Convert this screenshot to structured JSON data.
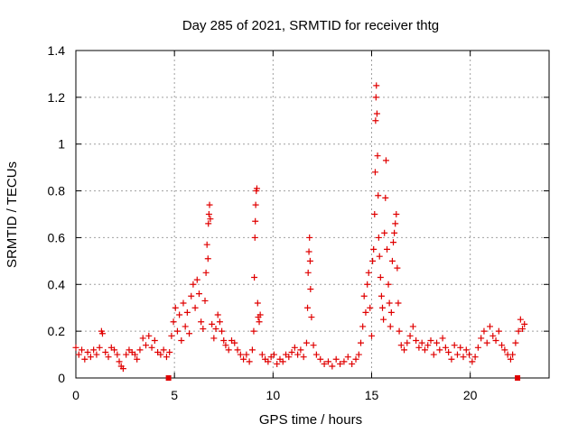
{
  "chart_data": {
    "type": "scatter",
    "title": "Day 285 of 2021, SRMTID for receiver thtg",
    "xlabel": "GPS time / hours",
    "ylabel": "SRMTID / TECUs",
    "xlim": [
      0,
      24
    ],
    "ylim": [
      0,
      1.4
    ],
    "grid": true,
    "marker": "+",
    "x_ticks": [
      {
        "value": 0,
        "label": "0"
      },
      {
        "value": 5,
        "label": "5"
      },
      {
        "value": 10,
        "label": "10"
      },
      {
        "value": 15,
        "label": "15"
      },
      {
        "value": 20,
        "label": "20"
      }
    ],
    "y_ticks": [
      {
        "value": 0,
        "label": "0"
      },
      {
        "value": 0.2,
        "label": "0.2"
      },
      {
        "value": 0.4,
        "label": "0.4"
      },
      {
        "value": 0.6,
        "label": "0.6"
      },
      {
        "value": 0.8,
        "label": "0.8"
      },
      {
        "value": 1.0,
        "label": "1"
      },
      {
        "value": 1.2,
        "label": "1.2"
      },
      {
        "value": 1.4,
        "label": "1.4"
      }
    ],
    "series": [
      {
        "name": "SRMTID",
        "color": "#e00000",
        "points": [
          [
            0.0,
            0.13
          ],
          [
            0.15,
            0.1
          ],
          [
            0.3,
            0.12
          ],
          [
            0.45,
            0.08
          ],
          [
            0.6,
            0.11
          ],
          [
            0.75,
            0.09
          ],
          [
            0.9,
            0.12
          ],
          [
            1.05,
            0.1
          ],
          [
            1.2,
            0.13
          ],
          [
            1.3,
            0.2
          ],
          [
            1.35,
            0.19
          ],
          [
            1.5,
            0.11
          ],
          [
            1.65,
            0.09
          ],
          [
            1.8,
            0.13
          ],
          [
            1.95,
            0.12
          ],
          [
            2.1,
            0.1
          ],
          [
            2.2,
            0.07
          ],
          [
            2.3,
            0.05
          ],
          [
            2.4,
            0.04
          ],
          [
            2.55,
            0.1
          ],
          [
            2.7,
            0.12
          ],
          [
            2.85,
            0.11
          ],
          [
            3.0,
            0.1
          ],
          [
            3.1,
            0.08
          ],
          [
            3.25,
            0.12
          ],
          [
            3.4,
            0.17
          ],
          [
            3.55,
            0.14
          ],
          [
            3.7,
            0.18
          ],
          [
            3.85,
            0.13
          ],
          [
            4.0,
            0.16
          ],
          [
            4.15,
            0.11
          ],
          [
            4.3,
            0.1
          ],
          [
            4.45,
            0.12
          ],
          [
            4.6,
            0.09
          ],
          [
            4.75,
            0.11
          ],
          [
            4.85,
            0.18
          ],
          [
            4.95,
            0.24
          ],
          [
            5.05,
            0.3
          ],
          [
            5.15,
            0.2
          ],
          [
            5.25,
            0.27
          ],
          [
            5.35,
            0.16
          ],
          [
            5.45,
            0.32
          ],
          [
            5.55,
            0.22
          ],
          [
            5.65,
            0.28
          ],
          [
            5.75,
            0.19
          ],
          [
            5.85,
            0.35
          ],
          [
            5.95,
            0.4
          ],
          [
            6.05,
            0.3
          ],
          [
            6.15,
            0.42
          ],
          [
            6.25,
            0.36
          ],
          [
            6.35,
            0.24
          ],
          [
            6.45,
            0.21
          ],
          [
            6.55,
            0.33
          ],
          [
            6.6,
            0.45
          ],
          [
            6.65,
            0.57
          ],
          [
            6.7,
            0.51
          ],
          [
            6.72,
            0.66
          ],
          [
            6.75,
            0.7
          ],
          [
            6.78,
            0.74
          ],
          [
            6.82,
            0.68
          ],
          [
            6.9,
            0.23
          ],
          [
            7.0,
            0.17
          ],
          [
            7.1,
            0.21
          ],
          [
            7.2,
            0.27
          ],
          [
            7.3,
            0.24
          ],
          [
            7.4,
            0.2
          ],
          [
            7.5,
            0.16
          ],
          [
            7.6,
            0.14
          ],
          [
            7.75,
            0.12
          ],
          [
            7.9,
            0.16
          ],
          [
            8.05,
            0.15
          ],
          [
            8.2,
            0.12
          ],
          [
            8.35,
            0.1
          ],
          [
            8.5,
            0.08
          ],
          [
            8.65,
            0.1
          ],
          [
            8.8,
            0.07
          ],
          [
            8.95,
            0.12
          ],
          [
            9.02,
            0.2
          ],
          [
            9.05,
            0.43
          ],
          [
            9.08,
            0.6
          ],
          [
            9.1,
            0.67
          ],
          [
            9.12,
            0.74
          ],
          [
            9.15,
            0.8
          ],
          [
            9.18,
            0.81
          ],
          [
            9.22,
            0.32
          ],
          [
            9.25,
            0.26
          ],
          [
            9.3,
            0.24
          ],
          [
            9.35,
            0.27
          ],
          [
            9.45,
            0.1
          ],
          [
            9.6,
            0.08
          ],
          [
            9.75,
            0.07
          ],
          [
            9.9,
            0.09
          ],
          [
            10.05,
            0.1
          ],
          [
            10.2,
            0.06
          ],
          [
            10.35,
            0.08
          ],
          [
            10.5,
            0.07
          ],
          [
            10.65,
            0.1
          ],
          [
            10.8,
            0.09
          ],
          [
            10.95,
            0.11
          ],
          [
            11.1,
            0.13
          ],
          [
            11.25,
            0.1
          ],
          [
            11.4,
            0.12
          ],
          [
            11.55,
            0.09
          ],
          [
            11.7,
            0.15
          ],
          [
            11.75,
            0.3
          ],
          [
            11.78,
            0.45
          ],
          [
            11.82,
            0.54
          ],
          [
            11.85,
            0.6
          ],
          [
            11.88,
            0.5
          ],
          [
            11.9,
            0.38
          ],
          [
            11.95,
            0.26
          ],
          [
            12.05,
            0.14
          ],
          [
            12.2,
            0.1
          ],
          [
            12.4,
            0.08
          ],
          [
            12.6,
            0.06
          ],
          [
            12.8,
            0.07
          ],
          [
            13.0,
            0.05
          ],
          [
            13.2,
            0.08
          ],
          [
            13.4,
            0.06
          ],
          [
            13.6,
            0.07
          ],
          [
            13.8,
            0.09
          ],
          [
            14.0,
            0.06
          ],
          [
            14.2,
            0.08
          ],
          [
            14.35,
            0.1
          ],
          [
            14.45,
            0.15
          ],
          [
            14.55,
            0.22
          ],
          [
            14.62,
            0.35
          ],
          [
            14.7,
            0.28
          ],
          [
            14.78,
            0.4
          ],
          [
            14.85,
            0.45
          ],
          [
            14.92,
            0.3
          ],
          [
            15.0,
            0.18
          ],
          [
            15.05,
            0.5
          ],
          [
            15.1,
            0.55
          ],
          [
            15.15,
            0.7
          ],
          [
            15.18,
            0.88
          ],
          [
            15.2,
            1.1
          ],
          [
            15.22,
            1.2
          ],
          [
            15.24,
            1.25
          ],
          [
            15.27,
            1.13
          ],
          [
            15.3,
            0.95
          ],
          [
            15.33,
            0.78
          ],
          [
            15.36,
            0.6
          ],
          [
            15.4,
            0.52
          ],
          [
            15.45,
            0.43
          ],
          [
            15.5,
            0.35
          ],
          [
            15.55,
            0.3
          ],
          [
            15.6,
            0.25
          ],
          [
            15.65,
            0.62
          ],
          [
            15.7,
            0.77
          ],
          [
            15.73,
            0.93
          ],
          [
            15.78,
            0.55
          ],
          [
            15.85,
            0.4
          ],
          [
            15.9,
            0.32
          ],
          [
            15.95,
            0.22
          ],
          [
            16.0,
            0.28
          ],
          [
            16.05,
            0.5
          ],
          [
            16.1,
            0.58
          ],
          [
            16.15,
            0.62
          ],
          [
            16.2,
            0.66
          ],
          [
            16.25,
            0.7
          ],
          [
            16.3,
            0.47
          ],
          [
            16.35,
            0.32
          ],
          [
            16.4,
            0.2
          ],
          [
            16.5,
            0.14
          ],
          [
            16.65,
            0.12
          ],
          [
            16.8,
            0.15
          ],
          [
            16.95,
            0.18
          ],
          [
            17.1,
            0.22
          ],
          [
            17.25,
            0.16
          ],
          [
            17.4,
            0.13
          ],
          [
            17.55,
            0.15
          ],
          [
            17.7,
            0.12
          ],
          [
            17.85,
            0.14
          ],
          [
            18.0,
            0.16
          ],
          [
            18.15,
            0.1
          ],
          [
            18.3,
            0.15
          ],
          [
            18.45,
            0.12
          ],
          [
            18.6,
            0.17
          ],
          [
            18.75,
            0.13
          ],
          [
            18.9,
            0.11
          ],
          [
            19.05,
            0.08
          ],
          [
            19.2,
            0.14
          ],
          [
            19.35,
            0.1
          ],
          [
            19.5,
            0.13
          ],
          [
            19.65,
            0.09
          ],
          [
            19.8,
            0.12
          ],
          [
            19.95,
            0.1
          ],
          [
            20.1,
            0.07
          ],
          [
            20.25,
            0.09
          ],
          [
            20.4,
            0.13
          ],
          [
            20.55,
            0.17
          ],
          [
            20.7,
            0.2
          ],
          [
            20.85,
            0.15
          ],
          [
            21.0,
            0.22
          ],
          [
            21.15,
            0.18
          ],
          [
            21.3,
            0.16
          ],
          [
            21.45,
            0.2
          ],
          [
            21.6,
            0.14
          ],
          [
            21.75,
            0.12
          ],
          [
            21.9,
            0.1
          ],
          [
            22.05,
            0.08
          ],
          [
            22.15,
            0.1
          ],
          [
            22.3,
            0.15
          ],
          [
            22.45,
            0.2
          ],
          [
            22.55,
            0.25
          ],
          [
            22.65,
            0.21
          ],
          [
            22.75,
            0.23
          ]
        ]
      }
    ],
    "markers_at_zero": [
      4.7,
      22.4
    ]
  }
}
